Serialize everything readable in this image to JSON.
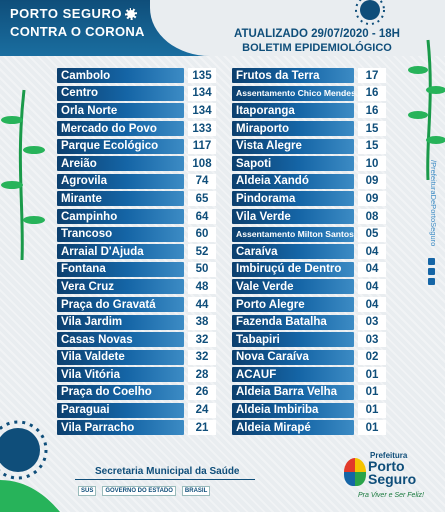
{
  "header": {
    "brand_line1": "PORTO SEGURO",
    "brand_line2": "CONTRA O CORONA",
    "updated": "ATUALIZADO 29/07/2020 - 18H",
    "bulletin": "BOLETIM EPIDEMIOLÓGICO"
  },
  "left_rows": [
    {
      "name": "Cambolo",
      "value": "135"
    },
    {
      "name": "Centro",
      "value": "134"
    },
    {
      "name": "Orla Norte",
      "value": "134"
    },
    {
      "name": "Mercado do Povo",
      "value": "133"
    },
    {
      "name": "Parque Ecológico",
      "value": "117"
    },
    {
      "name": "Areião",
      "value": "108"
    },
    {
      "name": "Agrovila",
      "value": "74"
    },
    {
      "name": "Mirante",
      "value": "65"
    },
    {
      "name": "Campinho",
      "value": "64"
    },
    {
      "name": "Trancoso",
      "value": "60"
    },
    {
      "name": "Arraial D'Ajuda",
      "value": "52"
    },
    {
      "name": "Fontana",
      "value": "50"
    },
    {
      "name": "Vera Cruz",
      "value": "48"
    },
    {
      "name": "Praça do Gravatá",
      "value": "44"
    },
    {
      "name": "Vila Jardim",
      "value": "38"
    },
    {
      "name": "Casas Novas",
      "value": "32"
    },
    {
      "name": "Vila Valdete",
      "value": "32"
    },
    {
      "name": "Vila Vitória",
      "value": "28"
    },
    {
      "name": "Praça do Coelho",
      "value": "26"
    },
    {
      "name": "Paraguai",
      "value": "24"
    },
    {
      "name": "Vila Parracho",
      "value": "21"
    }
  ],
  "right_rows": [
    {
      "name": "Frutos da Terra",
      "value": "17"
    },
    {
      "name": "Assentamento Chico Mendes",
      "value": "16"
    },
    {
      "name": "Itaporanga",
      "value": "16"
    },
    {
      "name": "Miraporto",
      "value": "15"
    },
    {
      "name": "Vista Alegre",
      "value": "15"
    },
    {
      "name": "Sapoti",
      "value": "10"
    },
    {
      "name": "Aldeia Xandó",
      "value": "09"
    },
    {
      "name": "Pindorama",
      "value": "09"
    },
    {
      "name": "Vila Verde",
      "value": "08"
    },
    {
      "name": "Assentamento Milton Santos",
      "value": "05"
    },
    {
      "name": "Caraíva",
      "value": "04"
    },
    {
      "name": "Imbiruçú de Dentro",
      "value": "04"
    },
    {
      "name": "Vale Verde",
      "value": "04"
    },
    {
      "name": "Porto Alegre",
      "value": "04"
    },
    {
      "name": "Fazenda Batalha",
      "value": "03"
    },
    {
      "name": "Tabapiri",
      "value": "03"
    },
    {
      "name": "Nova Caraíva",
      "value": "02"
    },
    {
      "name": "ACAUF",
      "value": "01"
    },
    {
      "name": "Aldeia Barra Velha",
      "value": "01"
    },
    {
      "name": "Aldeia Imbiriba",
      "value": "01"
    },
    {
      "name": "Aldeia Mirapé",
      "value": "01"
    }
  ],
  "side_text": "/PrefeituraDePortoSeguro",
  "footer": {
    "secretaria": "Secretaria Municipal da Saúde",
    "partners": [
      "SUS",
      "GOVERNO DO ESTADO",
      "BRASIL"
    ],
    "prefeitura_label": "Prefeitura",
    "prefeitura_name": "Porto Seguro",
    "slogan": "Pra Viver e Ser Feliz!"
  },
  "colors": {
    "primary": "#0f4e7a",
    "bar_light": "#3c8bc4",
    "number_bg": "#ffffff"
  }
}
